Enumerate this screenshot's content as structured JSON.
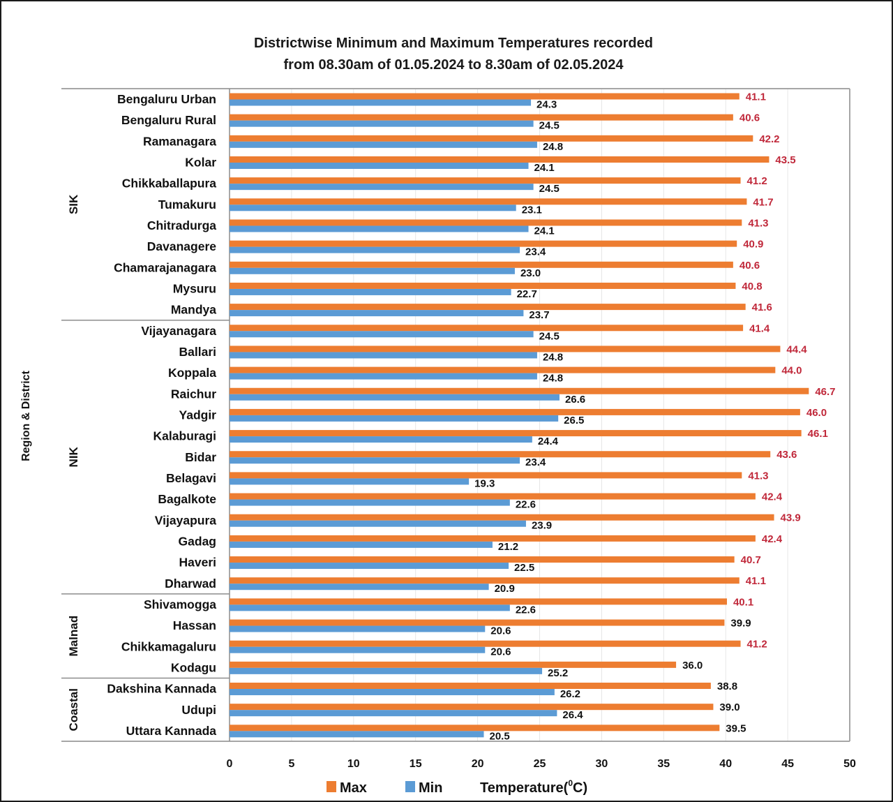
{
  "chart_data": {
    "type": "bar",
    "orientation": "horizontal",
    "title": [
      "Districtwise Minimum and Maximum Temperatures recorded",
      "from 08.30am of 01.05.2024 to 8.30am of 02.05.2024"
    ],
    "ylabel": "Region & District",
    "xlabel": "Temperature(⁰C)",
    "xlabel_parts": {
      "before": "Temperature(",
      "sup": "0",
      "after": "C)"
    },
    "xlim": [
      0,
      50
    ],
    "xticks": [
      0,
      5,
      10,
      15,
      20,
      25,
      30,
      35,
      40,
      45,
      50
    ],
    "grid": "vertical",
    "legend_position": "bottom",
    "colors": {
      "Max": "#ED7D31",
      "Min": "#5B9BD5",
      "label_hot": "#C0283A",
      "label_normal": "#111111"
    },
    "hot_threshold": 40,
    "regions": [
      {
        "name": "SIK",
        "count": 11
      },
      {
        "name": "NIK",
        "count": 13
      },
      {
        "name": "Malnad",
        "count": 4
      },
      {
        "name": "Coastal",
        "count": 3
      }
    ],
    "categories": [
      "Bengaluru Urban",
      "Bengaluru Rural",
      "Ramanagara",
      "Kolar",
      "Chikkaballapura",
      "Tumakuru",
      "Chitradurga",
      "Davanagere",
      "Chamarajanagara",
      "Mysuru",
      "Mandya",
      "Vijayanagara",
      "Ballari",
      "Koppala",
      "Raichur",
      "Yadgir",
      "Kalaburagi",
      "Bidar",
      "Belagavi",
      "Bagalkote",
      "Vijayapura",
      "Gadag",
      "Haveri",
      "Dharwad",
      "Shivamogga",
      "Hassan",
      "Chikkamagaluru",
      "Kodagu",
      "Dakshina Kannada",
      "Udupi",
      "Uttara Kannada"
    ],
    "series": [
      {
        "name": "Max",
        "values": [
          41.1,
          40.6,
          42.2,
          43.5,
          41.2,
          41.7,
          41.3,
          40.9,
          40.6,
          40.8,
          41.6,
          41.4,
          44.4,
          44.0,
          46.7,
          46.0,
          46.1,
          43.6,
          41.3,
          42.4,
          43.9,
          42.4,
          40.7,
          41.1,
          40.1,
          39.9,
          41.2,
          36.0,
          38.8,
          39.0,
          39.5
        ]
      },
      {
        "name": "Min",
        "values": [
          24.3,
          24.5,
          24.8,
          24.1,
          24.5,
          23.1,
          24.1,
          23.4,
          23.0,
          22.7,
          23.7,
          24.5,
          24.8,
          24.8,
          26.6,
          26.5,
          24.4,
          23.4,
          19.3,
          22.6,
          23.9,
          21.2,
          22.5,
          20.9,
          22.6,
          20.6,
          20.6,
          25.2,
          26.2,
          26.4,
          20.5
        ]
      }
    ]
  }
}
